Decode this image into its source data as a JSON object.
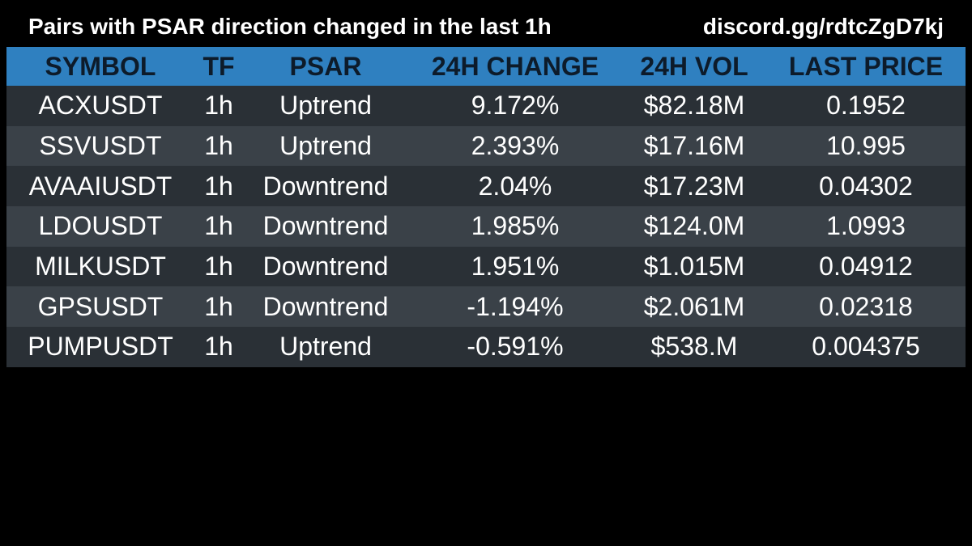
{
  "header": {
    "title": "Pairs with PSAR direction changed in the last 1h",
    "discord": "discord.gg/rdtcZgD7kj"
  },
  "table": {
    "columns": [
      "SYMBOL",
      "TF",
      "PSAR",
      "24H CHANGE",
      "24H VOL",
      "LAST PRICE"
    ],
    "rows": [
      [
        "ACXUSDT",
        "1h",
        "Uptrend",
        "9.172%",
        "$82.18M",
        "0.1952"
      ],
      [
        "SSVUSDT",
        "1h",
        "Uptrend",
        "2.393%",
        "$17.16M",
        "10.995"
      ],
      [
        "AVAAIUSDT",
        "1h",
        "Downtrend",
        "2.04%",
        "$17.23M",
        "0.04302"
      ],
      [
        "LDOUSDT",
        "1h",
        "Downtrend",
        "1.985%",
        "$124.0M",
        "1.0993"
      ],
      [
        "MILKUSDT",
        "1h",
        "Downtrend",
        "1.951%",
        "$1.015M",
        "0.04912"
      ],
      [
        "GPSUSDT",
        "1h",
        "Downtrend",
        "-1.194%",
        "$2.061M",
        "0.02318"
      ],
      [
        "PUMPUSDT",
        "1h",
        "Uptrend",
        "-0.591%",
        "$538.M",
        "0.004375"
      ]
    ]
  },
  "colors": {
    "background": "#000000",
    "header_bg": "#2f80c0",
    "row_dark": "#2a3036",
    "row_light": "#3a4148",
    "text": "#ffffff",
    "header_text": "#0d1b2a"
  }
}
